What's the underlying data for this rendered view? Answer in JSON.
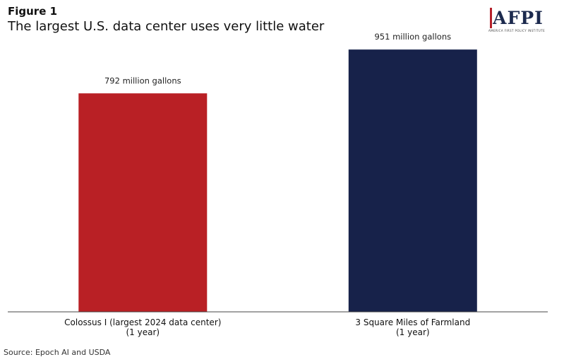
{
  "figure_label": "Figure 1",
  "title": "The largest U.S. data center uses very little water",
  "logo": {
    "text": "AFPI",
    "tagline": "AMERICA FIRST POLICY INSTITUTE",
    "color_primary": "#1c2a4e",
    "color_accent": "#b5202a"
  },
  "source": "Source: Epoch AI and USDA",
  "chart_data": {
    "type": "bar",
    "title": "The largest U.S. data center uses very little water",
    "xlabel": "",
    "ylabel": "",
    "unit": "million gallons",
    "ylim": [
      0,
      1000
    ],
    "grid": false,
    "categories": [
      [
        "Colossus I (largest 2024 data center)",
        "(1 year)"
      ],
      [
        "3 Square Miles of Farmland",
        "(1 year)"
      ]
    ],
    "values": [
      792,
      951
    ],
    "data_labels": [
      "792 million gallons",
      "951 million gallons"
    ],
    "colors": [
      "#b92025",
      "#17224a"
    ]
  }
}
